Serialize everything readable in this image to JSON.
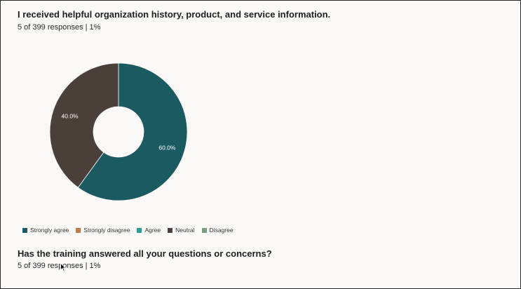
{
  "questions": [
    {
      "title": "I received helpful organization history, product, and service information.",
      "responses": "5 of 399 responses | 1%"
    },
    {
      "title": "Has the training answered all your questions or concerns?",
      "responses": "5 of 399 responses | 1%"
    }
  ],
  "chart_data": {
    "type": "pie",
    "donut": true,
    "title": "",
    "legend_position": "bottom-left",
    "categories": [
      "Strongly agree",
      "Strongly disagree",
      "Agree",
      "Neutral",
      "Disagree"
    ],
    "colors": [
      "#1a5a60",
      "#c57c48",
      "#2a9d98",
      "#4b3f39",
      "#7d9c7a"
    ],
    "values": [
      60.0,
      0,
      0,
      40.0,
      0
    ],
    "labels": [
      "60.0%",
      "",
      "",
      "40.0%",
      ""
    ]
  }
}
